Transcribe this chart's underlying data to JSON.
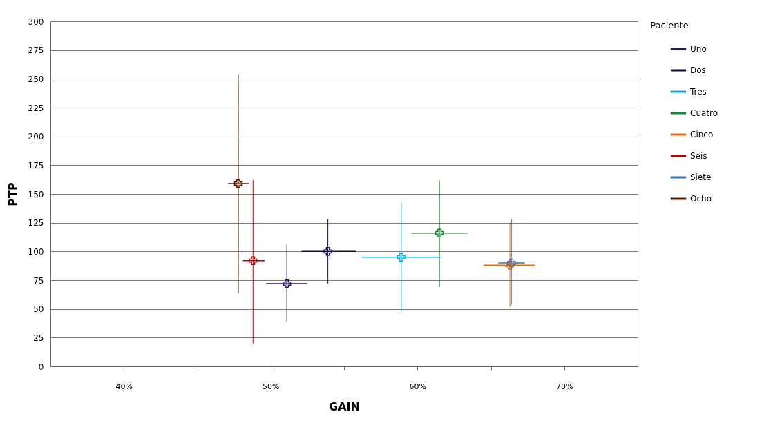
{
  "chart_data": {
    "type": "scatter",
    "xlabel": "GAIN",
    "ylabel": "PTP",
    "legend_title": "Paciente",
    "legend": "right",
    "grid": "y",
    "marker": "cross",
    "xlim": [
      35,
      75
    ],
    "xticks": [
      {
        "value": 40,
        "label": "40%"
      },
      {
        "value": 45,
        "label": null
      },
      {
        "value": 50,
        "label": "50%"
      },
      {
        "value": 55,
        "label": null
      },
      {
        "value": 60,
        "label": "60%"
      },
      {
        "value": 65,
        "label": null
      },
      {
        "value": 70,
        "label": "70%"
      }
    ],
    "ylim": [
      0,
      300
    ],
    "yticks": [
      0,
      25,
      50,
      75,
      100,
      125,
      150,
      175,
      200,
      225,
      250,
      275,
      300
    ],
    "series": [
      {
        "name": "Uno",
        "color": "#1f1a5c",
        "x": [
          51.1
        ],
        "values": [
          72
        ],
        "errors": [
          [
            39,
            106
          ]
        ],
        "xerrors": [
          [
            49.7,
            52.5
          ]
        ]
      },
      {
        "name": "Dos",
        "color": "#0d0d3a",
        "x": [
          53.9
        ],
        "values": [
          100
        ],
        "errors": [
          [
            72,
            128
          ]
        ],
        "xerrors": [
          [
            52.1,
            55.8
          ]
        ]
      },
      {
        "name": "Tres",
        "color": "#1aa3d9",
        "x": [
          58.9
        ],
        "values": [
          95
        ],
        "errors": [
          [
            48,
            142
          ]
        ],
        "xerrors": [
          [
            56.2,
            61.5
          ]
        ]
      },
      {
        "name": "Cuatro",
        "color": "#138a2a",
        "x": [
          61.5
        ],
        "values": [
          116
        ],
        "errors": [
          [
            69,
            162
          ]
        ],
        "xerrors": [
          [
            59.6,
            63.4
          ]
        ]
      },
      {
        "name": "Cinco",
        "color": "#e46c0a",
        "x": [
          66.3
        ],
        "values": [
          88
        ],
        "errors": [
          [
            52,
            125
          ]
        ],
        "xerrors": [
          [
            64.5,
            68.0
          ]
        ]
      },
      {
        "name": "Seis",
        "color": "#c00000",
        "x": [
          48.8
        ],
        "values": [
          92
        ],
        "errors": [
          [
            20,
            162
          ]
        ],
        "xerrors": [
          [
            48.1,
            49.6
          ]
        ]
      },
      {
        "name": "Siete",
        "color": "#3a6fb5",
        "x": [
          66.4
        ],
        "values": [
          90
        ],
        "errors": [
          [
            54,
            128
          ]
        ],
        "xerrors": [
          [
            65.5,
            67.3
          ]
        ]
      },
      {
        "name": "Ocho",
        "color": "#5a1500",
        "x": [
          47.8
        ],
        "values": [
          159
        ],
        "errors": [
          [
            64,
            254
          ]
        ],
        "xerrors": [
          [
            47.1,
            48.5
          ]
        ]
      }
    ]
  }
}
